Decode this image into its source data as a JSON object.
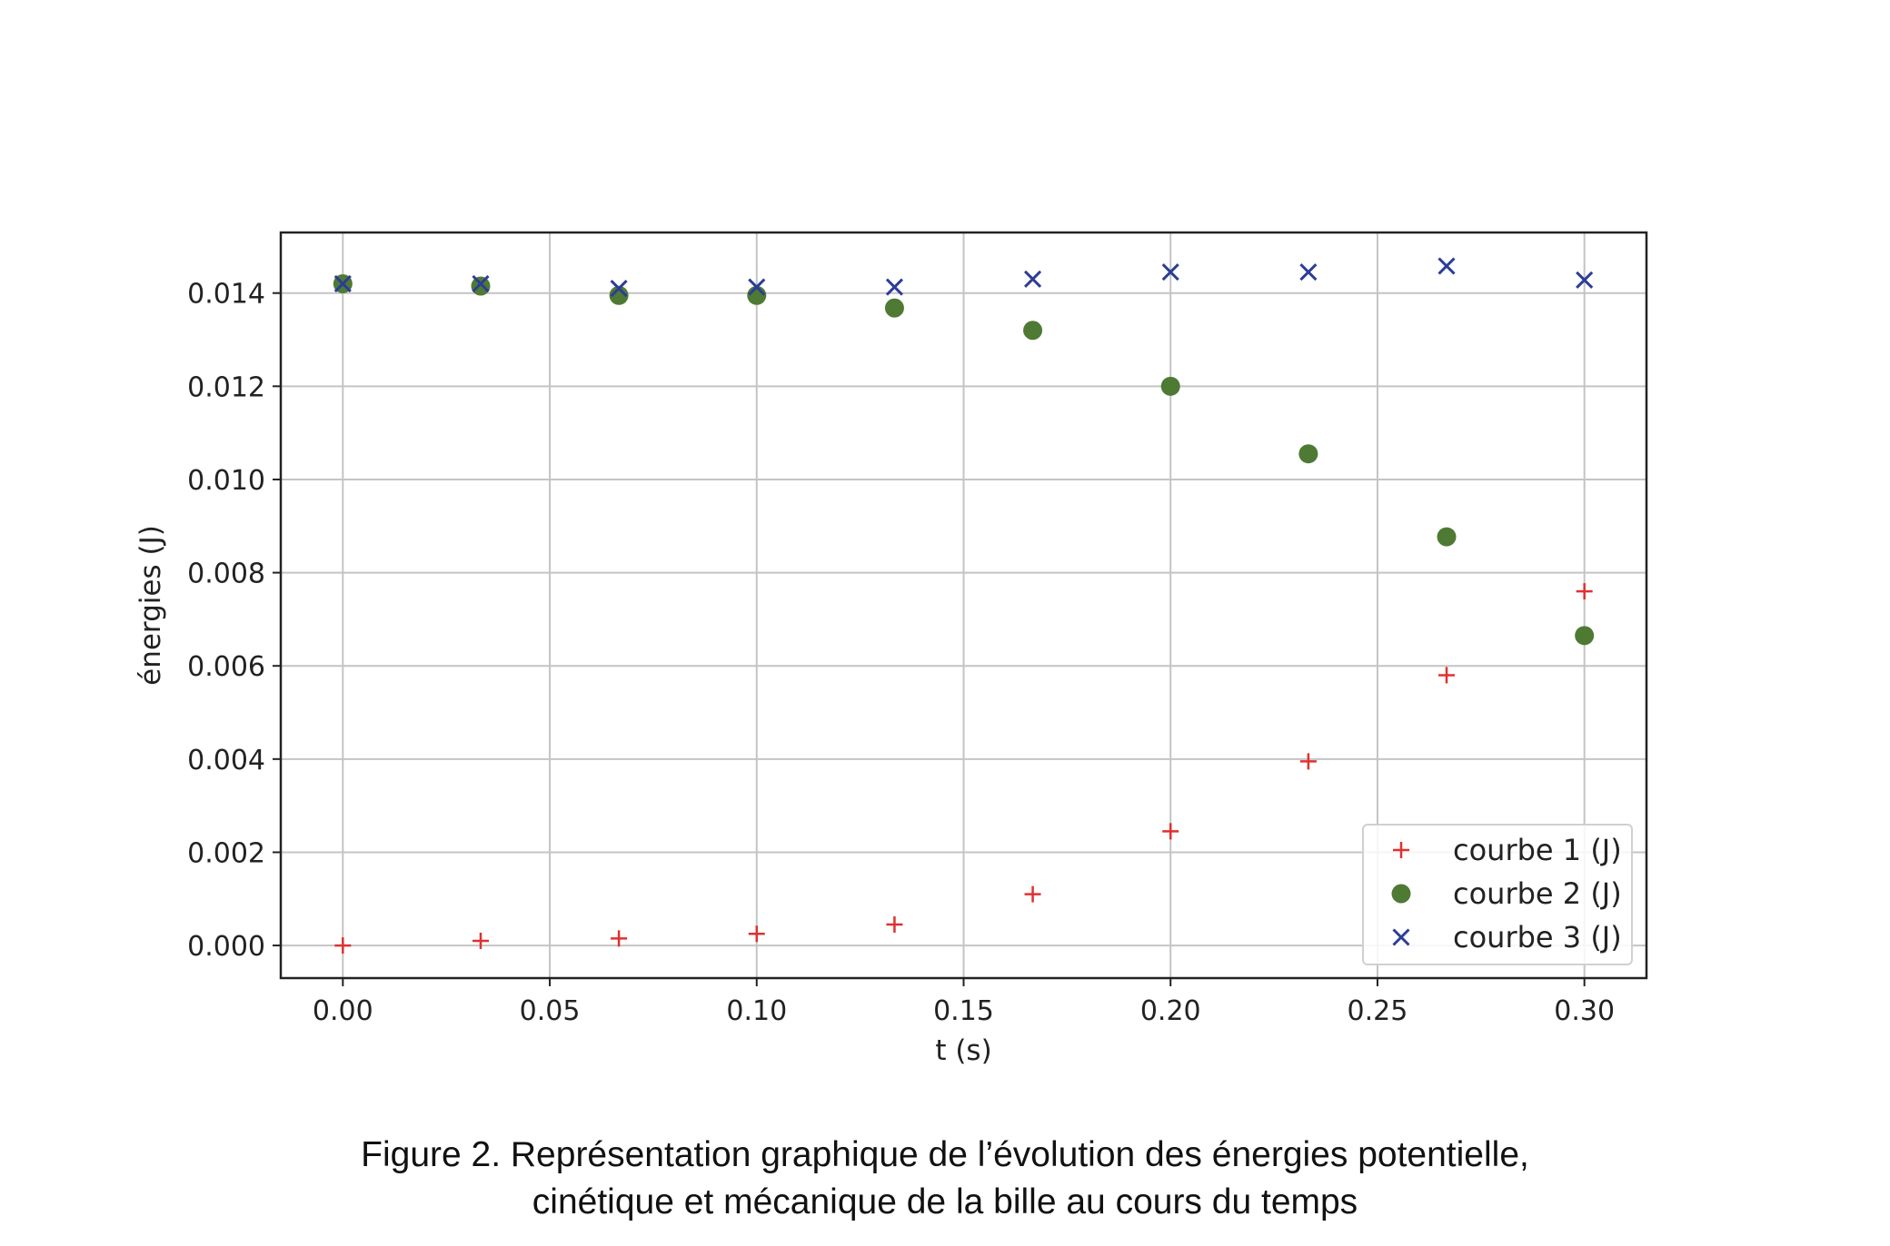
{
  "chart_data": {
    "type": "scatter",
    "xlabel": "t (s)",
    "ylabel": "énergies (J)",
    "xlim": [
      -0.015,
      0.315
    ],
    "ylim": [
      -0.0007,
      0.0153
    ],
    "xticks": [
      0.0,
      0.05,
      0.1,
      0.15,
      0.2,
      0.25,
      0.3
    ],
    "xtick_labels": [
      "0.00",
      "0.05",
      "0.10",
      "0.15",
      "0.20",
      "0.25",
      "0.30"
    ],
    "yticks": [
      0.0,
      0.002,
      0.004,
      0.006,
      0.008,
      0.01,
      0.012,
      0.014
    ],
    "ytick_labels": [
      "0.000",
      "0.002",
      "0.004",
      "0.006",
      "0.008",
      "0.010",
      "0.012",
      "0.014"
    ],
    "grid": true,
    "legend_position": "bottom-right",
    "x": [
      0.0,
      0.0333,
      0.0667,
      0.1,
      0.1333,
      0.1667,
      0.2,
      0.2333,
      0.2667,
      0.3
    ],
    "series": [
      {
        "name": "courbe 1 (J)",
        "marker": "plus",
        "color": "#e03030",
        "values": [
          0.0,
          0.0001,
          0.00015,
          0.00025,
          0.00045,
          0.0011,
          0.00245,
          0.00395,
          0.0058,
          0.0076
        ]
      },
      {
        "name": "courbe 2 (J)",
        "marker": "circle",
        "color": "#4e7a34",
        "values": [
          0.0142,
          0.01415,
          0.01395,
          0.01395,
          0.01368,
          0.0132,
          0.012,
          0.01055,
          0.00877,
          0.00665
        ]
      },
      {
        "name": "courbe 3 (J)",
        "marker": "x",
        "color": "#2c3d96",
        "values": [
          0.0142,
          0.0142,
          0.0141,
          0.01413,
          0.01413,
          0.0143,
          0.01445,
          0.01445,
          0.01458,
          0.01428
        ]
      }
    ]
  },
  "caption": {
    "line1": "Figure 2. Représentation graphique de l’évolution des énergies potentielle,",
    "line2": "cinétique et mécanique de la bille au cours du temps"
  }
}
